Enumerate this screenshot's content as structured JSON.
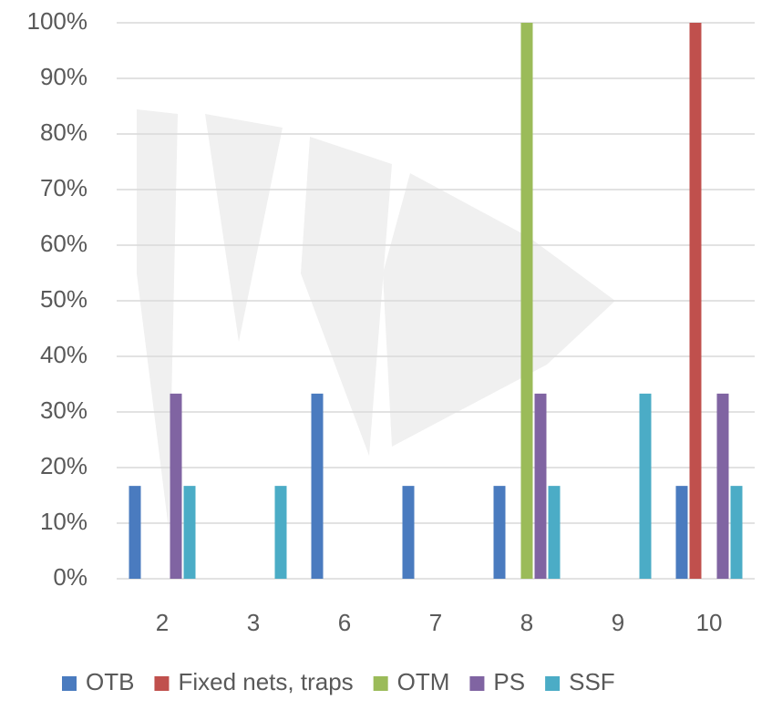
{
  "chart_data": {
    "type": "bar",
    "categories": [
      "2",
      "3",
      "6",
      "7",
      "8",
      "9",
      "10"
    ],
    "series": [
      {
        "name": "OTB",
        "color": "#4a7bbf",
        "values": [
          16.7,
          null,
          33.3,
          16.7,
          16.7,
          null,
          16.7
        ]
      },
      {
        "name": "Fixed nets, traps",
        "color": "#c0504d",
        "values": [
          null,
          null,
          null,
          null,
          null,
          null,
          100
        ]
      },
      {
        "name": "OTM",
        "color": "#9bbb59",
        "values": [
          null,
          null,
          null,
          null,
          100,
          null,
          null
        ]
      },
      {
        "name": "PS",
        "color": "#8064a2",
        "values": [
          33.3,
          null,
          null,
          null,
          33.3,
          null,
          33.3
        ]
      },
      {
        "name": "SSF",
        "color": "#4bacc6",
        "values": [
          16.7,
          16.7,
          null,
          null,
          16.7,
          33.3,
          16.7
        ]
      }
    ],
    "ylim": [
      0,
      100
    ],
    "yticks": [
      {
        "value": 0,
        "label": "0%"
      },
      {
        "value": 10,
        "label": "10%"
      },
      {
        "value": 20,
        "label": "20%"
      },
      {
        "value": 30,
        "label": "30%"
      },
      {
        "value": 40,
        "label": "40%"
      },
      {
        "value": 50,
        "label": "50%"
      },
      {
        "value": 60,
        "label": "60%"
      },
      {
        "value": 70,
        "label": "70%"
      },
      {
        "value": 80,
        "label": "80%"
      },
      {
        "value": 90,
        "label": "90%"
      },
      {
        "value": 100,
        "label": "100%"
      }
    ],
    "grid": true,
    "legend": "bottom"
  }
}
